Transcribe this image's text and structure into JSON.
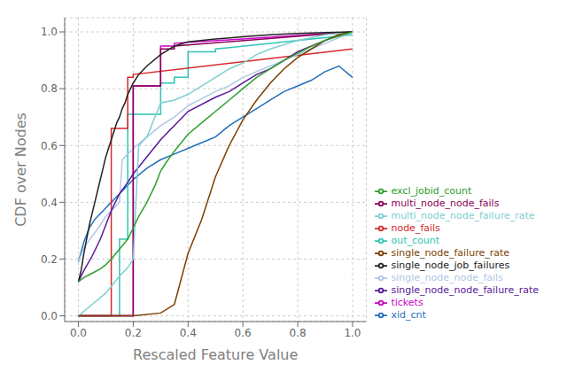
{
  "chart_data": {
    "type": "line",
    "xlabel": "Rescaled Feature Value",
    "ylabel": "CDF over Nodes",
    "xlim": [
      -0.05,
      1.05
    ],
    "ylim": [
      -0.02,
      1.05
    ],
    "xticks": [
      {
        "value": 0,
        "label": "0.0"
      },
      0.2,
      0.4,
      0.6,
      0.8,
      {
        "value": 1,
        "label": "1.0"
      }
    ],
    "yticks": [
      {
        "value": 0,
        "label": "0.0"
      },
      0.2,
      0.4,
      0.6,
      0.8,
      {
        "value": 1,
        "label": "1.0"
      }
    ],
    "grid": true,
    "legend": "lower right",
    "series": [
      {
        "name": "xid_cnt",
        "color": "#1f6fba",
        "x": [
          0.0,
          0.02,
          0.04,
          0.06,
          0.08,
          0.1,
          0.12,
          0.14,
          0.16,
          0.18,
          0.2,
          0.25,
          0.3,
          0.35,
          0.4,
          0.45,
          0.5,
          0.55,
          0.6,
          0.65,
          0.7,
          0.75,
          0.8,
          0.85,
          0.9,
          0.95,
          1.0
        ],
        "values": [
          0.19,
          0.26,
          0.31,
          0.34,
          0.36,
          0.38,
          0.4,
          0.42,
          0.44,
          0.46,
          0.48,
          0.52,
          0.55,
          0.57,
          0.59,
          0.61,
          0.63,
          0.67,
          0.7,
          0.73,
          0.76,
          0.79,
          0.81,
          0.83,
          0.86,
          0.88,
          0.84
        ]
      },
      {
        "name": "out_count",
        "color": "#2ec4b6",
        "x": [
          0.0,
          0.15,
          0.15,
          0.18,
          0.18,
          0.3,
          0.3,
          0.35,
          0.35,
          0.4,
          0.4,
          0.5,
          0.5,
          1.0
        ],
        "values": [
          0.0,
          0.0,
          0.27,
          0.27,
          0.71,
          0.71,
          0.82,
          0.82,
          0.84,
          0.84,
          0.93,
          0.93,
          0.94,
          0.99
        ]
      },
      {
        "name": "tickets",
        "color": "#cc00cc",
        "x": [
          0.0,
          0.2,
          0.2,
          0.3,
          0.3,
          0.35,
          0.35,
          1.0
        ],
        "values": [
          0.0,
          0.0,
          0.81,
          0.81,
          0.95,
          0.95,
          0.96,
          1.0
        ]
      },
      {
        "name": "node_fails",
        "color": "#d62728",
        "x": [
          0.0,
          0.12,
          0.12,
          0.18,
          0.18,
          0.2,
          0.2,
          1.0
        ],
        "values": [
          0.0,
          0.0,
          0.66,
          0.66,
          0.84,
          0.84,
          0.85,
          0.94
        ]
      },
      {
        "name": "single_node_node_fails",
        "color": "#aec7e8",
        "x": [
          0.0,
          0.02,
          0.05,
          0.08,
          0.1,
          0.12,
          0.15,
          0.16,
          0.18,
          0.2,
          0.25,
          0.3,
          0.35,
          0.4,
          0.5,
          0.55,
          0.6,
          0.65,
          0.7,
          0.75,
          0.8,
          0.85,
          0.9,
          0.95,
          1.0
        ],
        "values": [
          0.19,
          0.24,
          0.28,
          0.32,
          0.35,
          0.37,
          0.4,
          0.55,
          0.57,
          0.59,
          0.63,
          0.67,
          0.7,
          0.74,
          0.79,
          0.81,
          0.84,
          0.86,
          0.88,
          0.9,
          0.92,
          0.94,
          0.96,
          0.98,
          1.0
        ]
      },
      {
        "name": "multi_node_node_fails",
        "color": "#8b0057",
        "x": [
          0.0,
          0.2,
          0.2,
          0.3,
          0.3,
          0.35,
          0.35,
          1.0
        ],
        "values": [
          0.0,
          0.0,
          0.81,
          0.81,
          0.94,
          0.94,
          0.95,
          1.0
        ]
      },
      {
        "name": "single_node_node_failure_rate",
        "color": "#5a189a",
        "x": [
          0.0,
          0.02,
          0.05,
          0.08,
          0.1,
          0.12,
          0.15,
          0.18,
          0.2,
          0.25,
          0.3,
          0.35,
          0.4,
          0.5,
          0.55,
          0.6,
          0.65,
          0.7,
          0.75,
          0.8,
          0.85,
          0.9,
          0.95,
          1.0
        ],
        "values": [
          0.12,
          0.16,
          0.21,
          0.27,
          0.32,
          0.37,
          0.43,
          0.47,
          0.5,
          0.56,
          0.62,
          0.67,
          0.72,
          0.77,
          0.79,
          0.82,
          0.85,
          0.87,
          0.9,
          0.93,
          0.95,
          0.97,
          0.99,
          1.0
        ]
      },
      {
        "name": "multi_node_node_failure_rate",
        "color": "#7ecfcf",
        "x": [
          0.0,
          0.05,
          0.1,
          0.15,
          0.18,
          0.2,
          0.22,
          0.25,
          0.3,
          0.35,
          0.4,
          0.5,
          0.55,
          0.6,
          0.65,
          0.7,
          0.8,
          0.9,
          1.0
        ],
        "values": [
          0.0,
          0.04,
          0.08,
          0.14,
          0.17,
          0.2,
          0.6,
          0.63,
          0.75,
          0.76,
          0.78,
          0.84,
          0.87,
          0.89,
          0.92,
          0.94,
          0.97,
          0.99,
          1.0
        ]
      },
      {
        "name": "single_node_failure_rate",
        "color": "#7b3f00",
        "x": [
          0.0,
          0.1,
          0.2,
          0.3,
          0.35,
          0.4,
          0.45,
          0.5,
          0.55,
          0.6,
          0.65,
          0.7,
          0.75,
          0.8,
          0.85,
          0.9,
          0.95,
          1.0
        ],
        "values": [
          0.0,
          0.0,
          0.0,
          0.01,
          0.04,
          0.22,
          0.34,
          0.49,
          0.6,
          0.69,
          0.76,
          0.82,
          0.87,
          0.91,
          0.94,
          0.97,
          0.99,
          1.0
        ]
      },
      {
        "name": "single_node_job_failures",
        "color": "#222222",
        "x": [
          0.0,
          0.01,
          0.02,
          0.03,
          0.04,
          0.05,
          0.06,
          0.07,
          0.08,
          0.09,
          0.1,
          0.11,
          0.12,
          0.13,
          0.14,
          0.15,
          0.16,
          0.17,
          0.18,
          0.19,
          0.2,
          0.22,
          0.25,
          0.3,
          0.35,
          0.4,
          0.5,
          0.6,
          0.7,
          0.8,
          0.9,
          1.0
        ],
        "values": [
          0.12,
          0.16,
          0.22,
          0.27,
          0.32,
          0.36,
          0.4,
          0.44,
          0.48,
          0.52,
          0.56,
          0.59,
          0.62,
          0.65,
          0.68,
          0.7,
          0.73,
          0.75,
          0.78,
          0.8,
          0.82,
          0.85,
          0.88,
          0.92,
          0.95,
          0.965,
          0.975,
          0.983,
          0.99,
          0.995,
          0.998,
          1.0
        ]
      },
      {
        "name": "excl_jobid_count",
        "color": "#2ca02c",
        "x": [
          0.0,
          0.02,
          0.05,
          0.08,
          0.1,
          0.12,
          0.15,
          0.18,
          0.2,
          0.22,
          0.25,
          0.28,
          0.3,
          0.32,
          0.35,
          0.4,
          0.45,
          0.5,
          0.55,
          0.6,
          0.65,
          0.7,
          0.75,
          0.8,
          0.85,
          0.9,
          0.95,
          1.0
        ],
        "values": [
          0.12,
          0.135,
          0.15,
          0.165,
          0.18,
          0.2,
          0.235,
          0.27,
          0.31,
          0.35,
          0.4,
          0.46,
          0.51,
          0.54,
          0.58,
          0.64,
          0.68,
          0.72,
          0.76,
          0.8,
          0.84,
          0.87,
          0.9,
          0.925,
          0.95,
          0.97,
          0.985,
          1.0
        ]
      }
    ]
  }
}
